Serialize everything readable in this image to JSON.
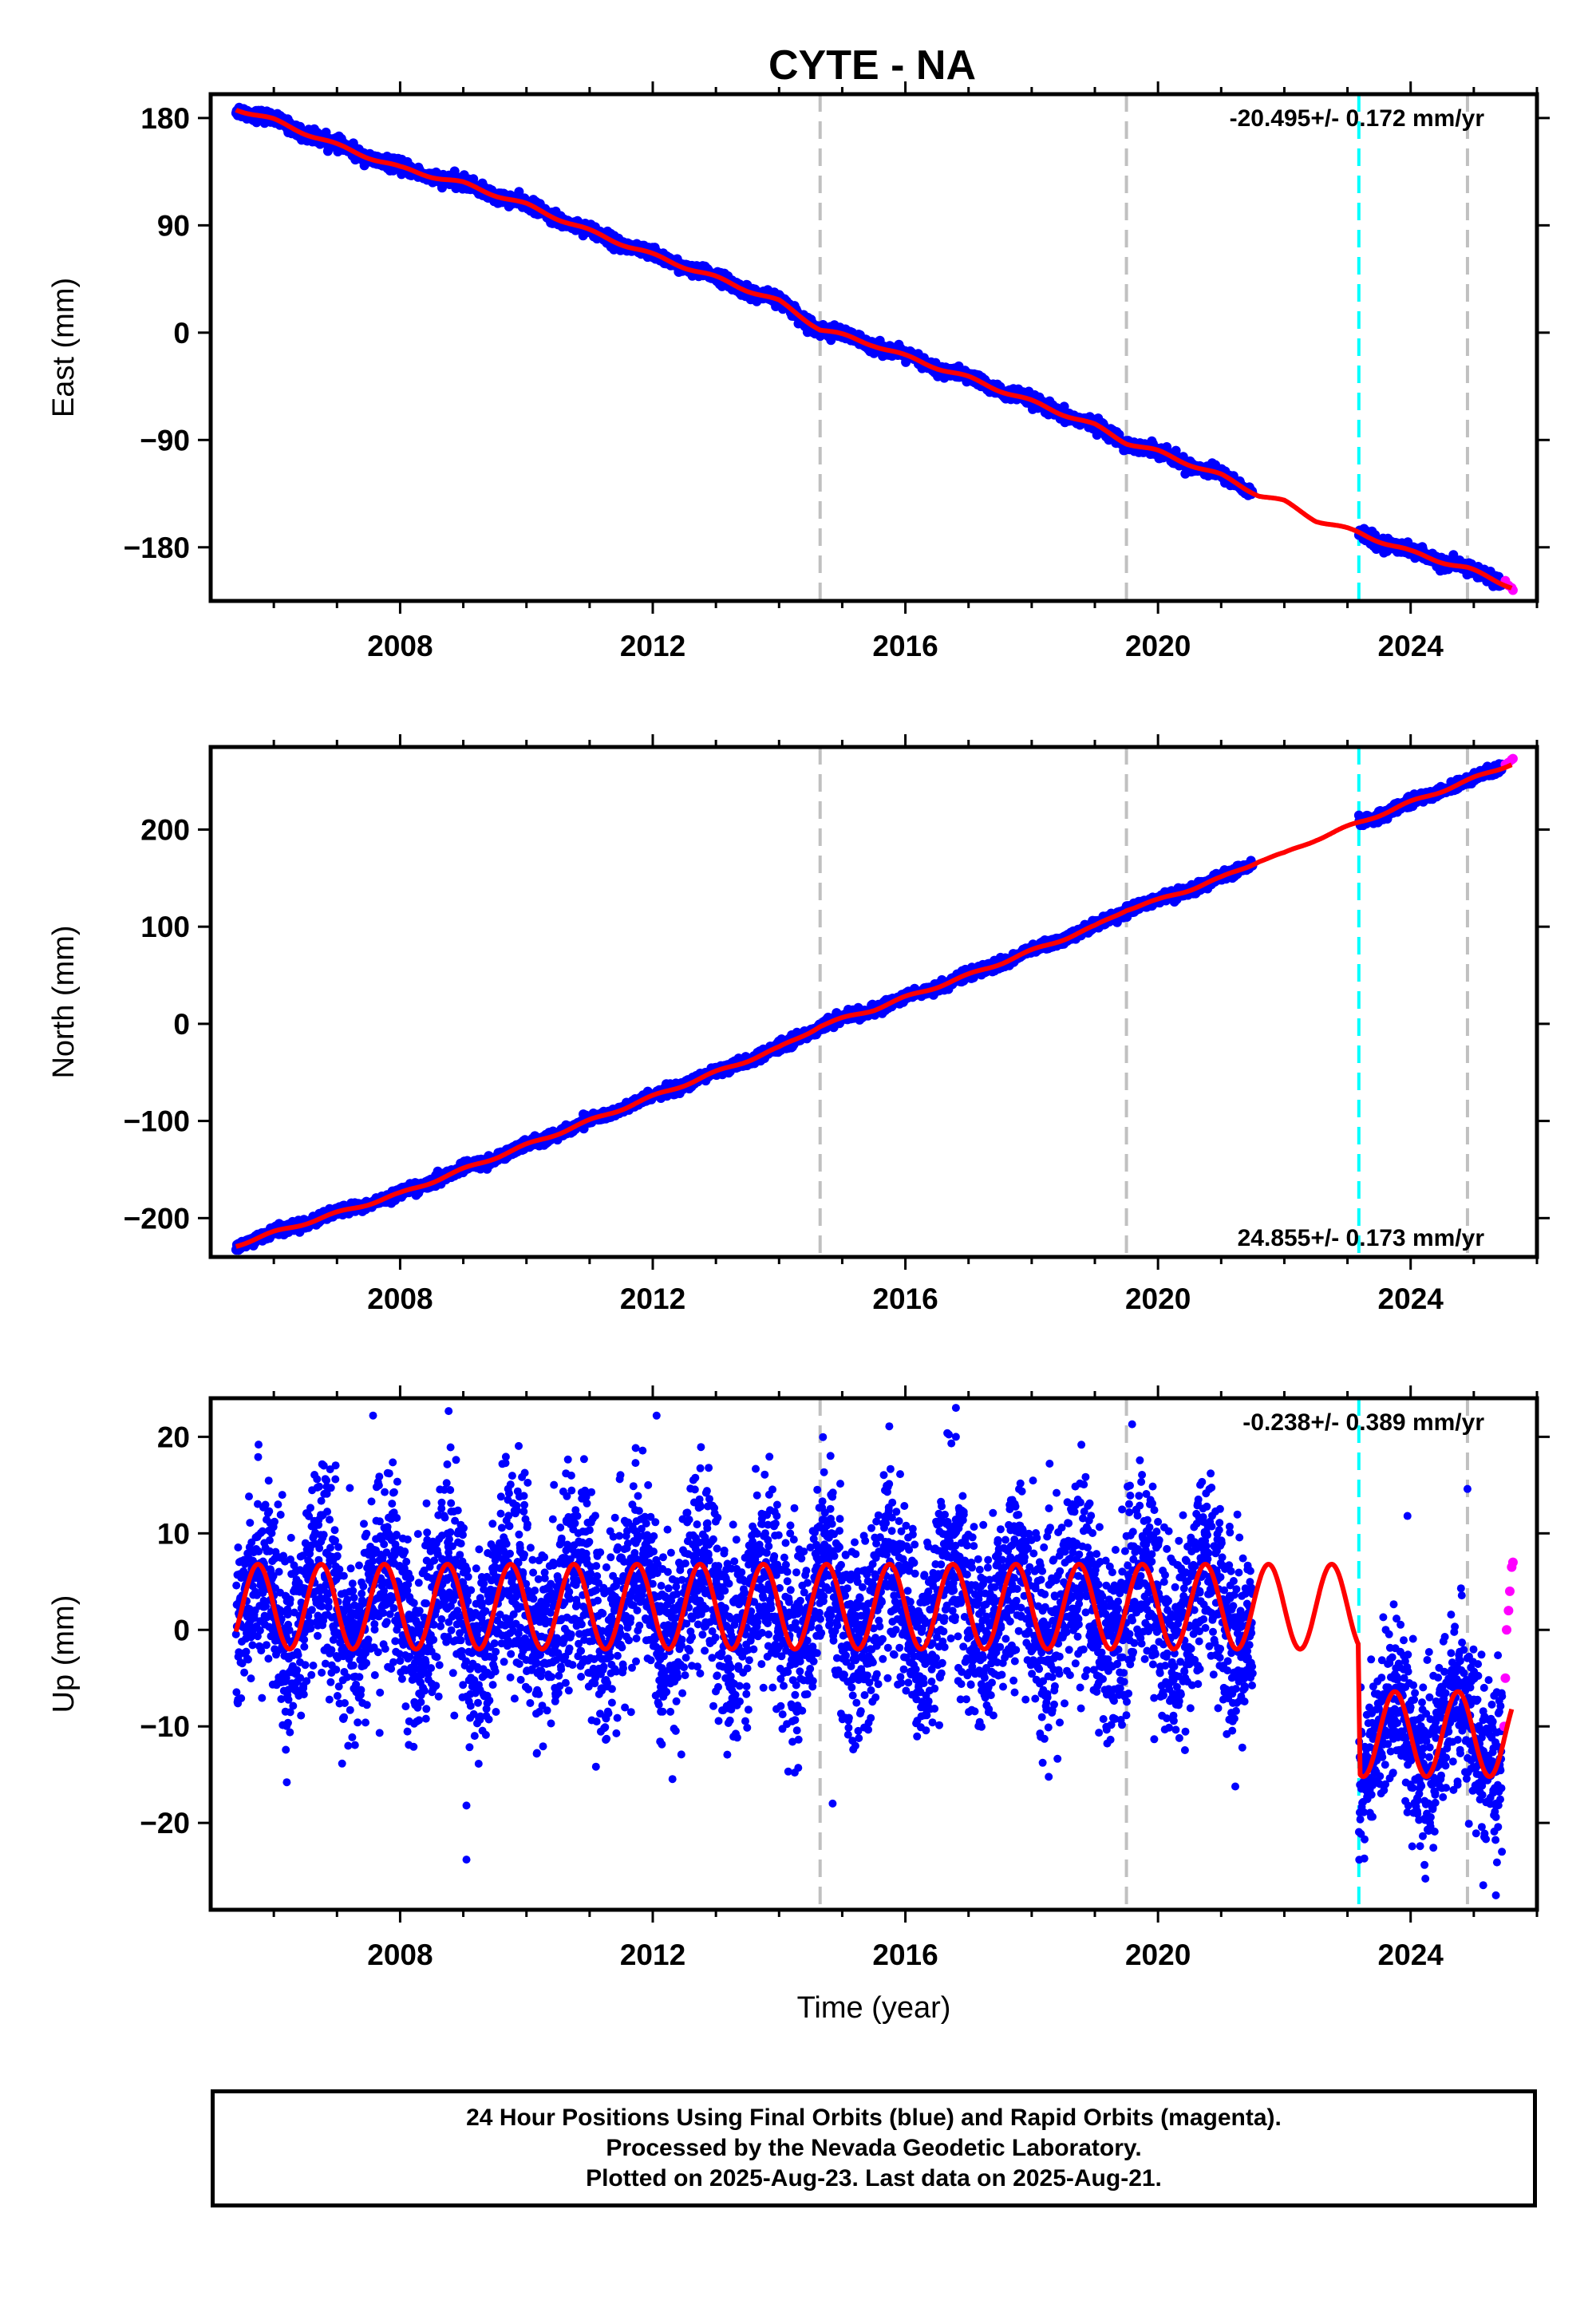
{
  "title": "CYTE - NA",
  "xlabel": "Time (year)",
  "x_ticks": [
    2008,
    2012,
    2016,
    2020,
    2024
  ],
  "xlim": [
    2005.0,
    2026.0
  ],
  "colors": {
    "final_orbits": "#0000ff",
    "rapid_orbits": "#ff00ff",
    "model": "#ff0000",
    "grey_events": "#c0c0c0",
    "cyan_event": "#00ffff"
  },
  "event_lines": {
    "grey": [
      2014.65,
      2019.5,
      2024.9
    ],
    "cyan": [
      2023.18
    ]
  },
  "chart_data": [
    {
      "type": "scatter",
      "name": "east",
      "ylabel": "East (mm)",
      "ylim": [
        -225,
        200
      ],
      "yticks": [
        180,
        90,
        0,
        -90,
        -180
      ],
      "rate_text": "-20.495+/- 0.172 mm/yr",
      "rate_position": "top-right",
      "rate_mm_per_yr": -20.495,
      "model": {
        "x": [
          2005.4,
          2006.0,
          2007.0,
          2008.0,
          2009.0,
          2010.0,
          2011.0,
          2012.0,
          2013.0,
          2014.0,
          2014.65,
          2015.5,
          2016.0,
          2017.0,
          2018.0,
          2019.0,
          2019.5,
          2020.0,
          2021.0,
          2021.6,
          2022.0,
          2022.5,
          2023.18,
          2024.0,
          2024.9,
          2025.6
        ],
        "y": [
          188,
          178,
          157,
          138,
          125,
          107,
          85,
          65,
          46,
          26,
          3,
          -10,
          -20,
          -38,
          -58,
          -78,
          -92,
          -100,
          -120,
          -136,
          -142,
          -157,
          -168,
          -184,
          -198,
          -213
        ]
      },
      "data_segments": [
        {
          "x_start": 2005.4,
          "x_end": 2021.5
        },
        {
          "x_start": 2023.18,
          "x_end": 2025.45
        }
      ],
      "rapid": {
        "x": [
          2025.5,
          2025.55,
          2025.6,
          2025.62
        ],
        "y": [
          -208,
          -212,
          -214,
          -216
        ]
      }
    },
    {
      "type": "scatter",
      "name": "north",
      "ylabel": "North (mm)",
      "ylim": [
        -240,
        285
      ],
      "yticks": [
        200,
        100,
        0,
        -100,
        -200
      ],
      "rate_text": "24.855+/- 0.173 mm/yr",
      "rate_position": "bottom-right",
      "rate_mm_per_yr": 24.855,
      "model": {
        "x": [
          2005.4,
          2006.0,
          2007.0,
          2008.0,
          2009.0,
          2010.0,
          2011.0,
          2012.0,
          2013.0,
          2014.0,
          2014.65,
          2015.5,
          2016.0,
          2017.0,
          2018.0,
          2019.0,
          2019.5,
          2020.0,
          2021.0,
          2021.6,
          2022.0,
          2022.5,
          2023.18,
          2024.0,
          2024.9,
          2025.6
        ],
        "y": [
          -228,
          -215,
          -195,
          -175,
          -150,
          -125,
          -100,
          -75,
          -50,
          -25,
          -2,
          15,
          27,
          50,
          75,
          100,
          118,
          127,
          150,
          168,
          175,
          190,
          207,
          228,
          250,
          268
        ]
      },
      "data_segments": [
        {
          "x_start": 2005.4,
          "x_end": 2021.5
        },
        {
          "x_start": 2023.18,
          "x_end": 2025.45
        }
      ],
      "rapid": {
        "x": [
          2025.5,
          2025.55,
          2025.6,
          2025.62
        ],
        "y": [
          267,
          269,
          272,
          273
        ]
      }
    },
    {
      "type": "scatter",
      "name": "up",
      "ylabel": "Up (mm)",
      "ylim": [
        -29,
        24
      ],
      "yticks": [
        20,
        10,
        0,
        -10,
        -20
      ],
      "rate_text": "-0.238+/- 0.389 mm/yr",
      "rate_position": "top-right",
      "rate_mm_per_yr": -0.238,
      "model": {
        "offset_before": 2.4,
        "offset_after": -10.8,
        "amplitude_start": 4.4,
        "amplitude_end": 4.2,
        "period_yr": 1.0,
        "first_peak": 2005.75
      },
      "data_segments": [
        {
          "x_start": 2005.4,
          "x_end": 2021.5,
          "offset": 0.5,
          "spread": 5
        },
        {
          "x_start": 2023.18,
          "x_end": 2025.45,
          "offset": -11,
          "spread": 4
        }
      ],
      "rapid": {
        "x": [
          2025.48,
          2025.5,
          2025.52,
          2025.55,
          2025.57,
          2025.6,
          2025.62
        ],
        "y": [
          -10,
          -5,
          0,
          2,
          4,
          6.5,
          7
        ]
      },
      "outliers": [
        {
          "x": 2009.05,
          "y": -18.2
        },
        {
          "x": 2009.05,
          "y": -23.8
        },
        {
          "x": 2016.8,
          "y": 23
        },
        {
          "x": 2016.8,
          "y": 20
        },
        {
          "x": 2024.9,
          "y": 14.6
        },
        {
          "x": 2023.95,
          "y": 11.8
        },
        {
          "x": 2025.35,
          "y": -27.5
        }
      ]
    }
  ],
  "footer": {
    "line1": "24 Hour Positions Using Final Orbits (blue) and Rapid Orbits (magenta).",
    "line2": "Processed by the Nevada Geodetic Laboratory.",
    "line3": "Plotted on 2025-Aug-23. Last data on 2025-Aug-21."
  }
}
